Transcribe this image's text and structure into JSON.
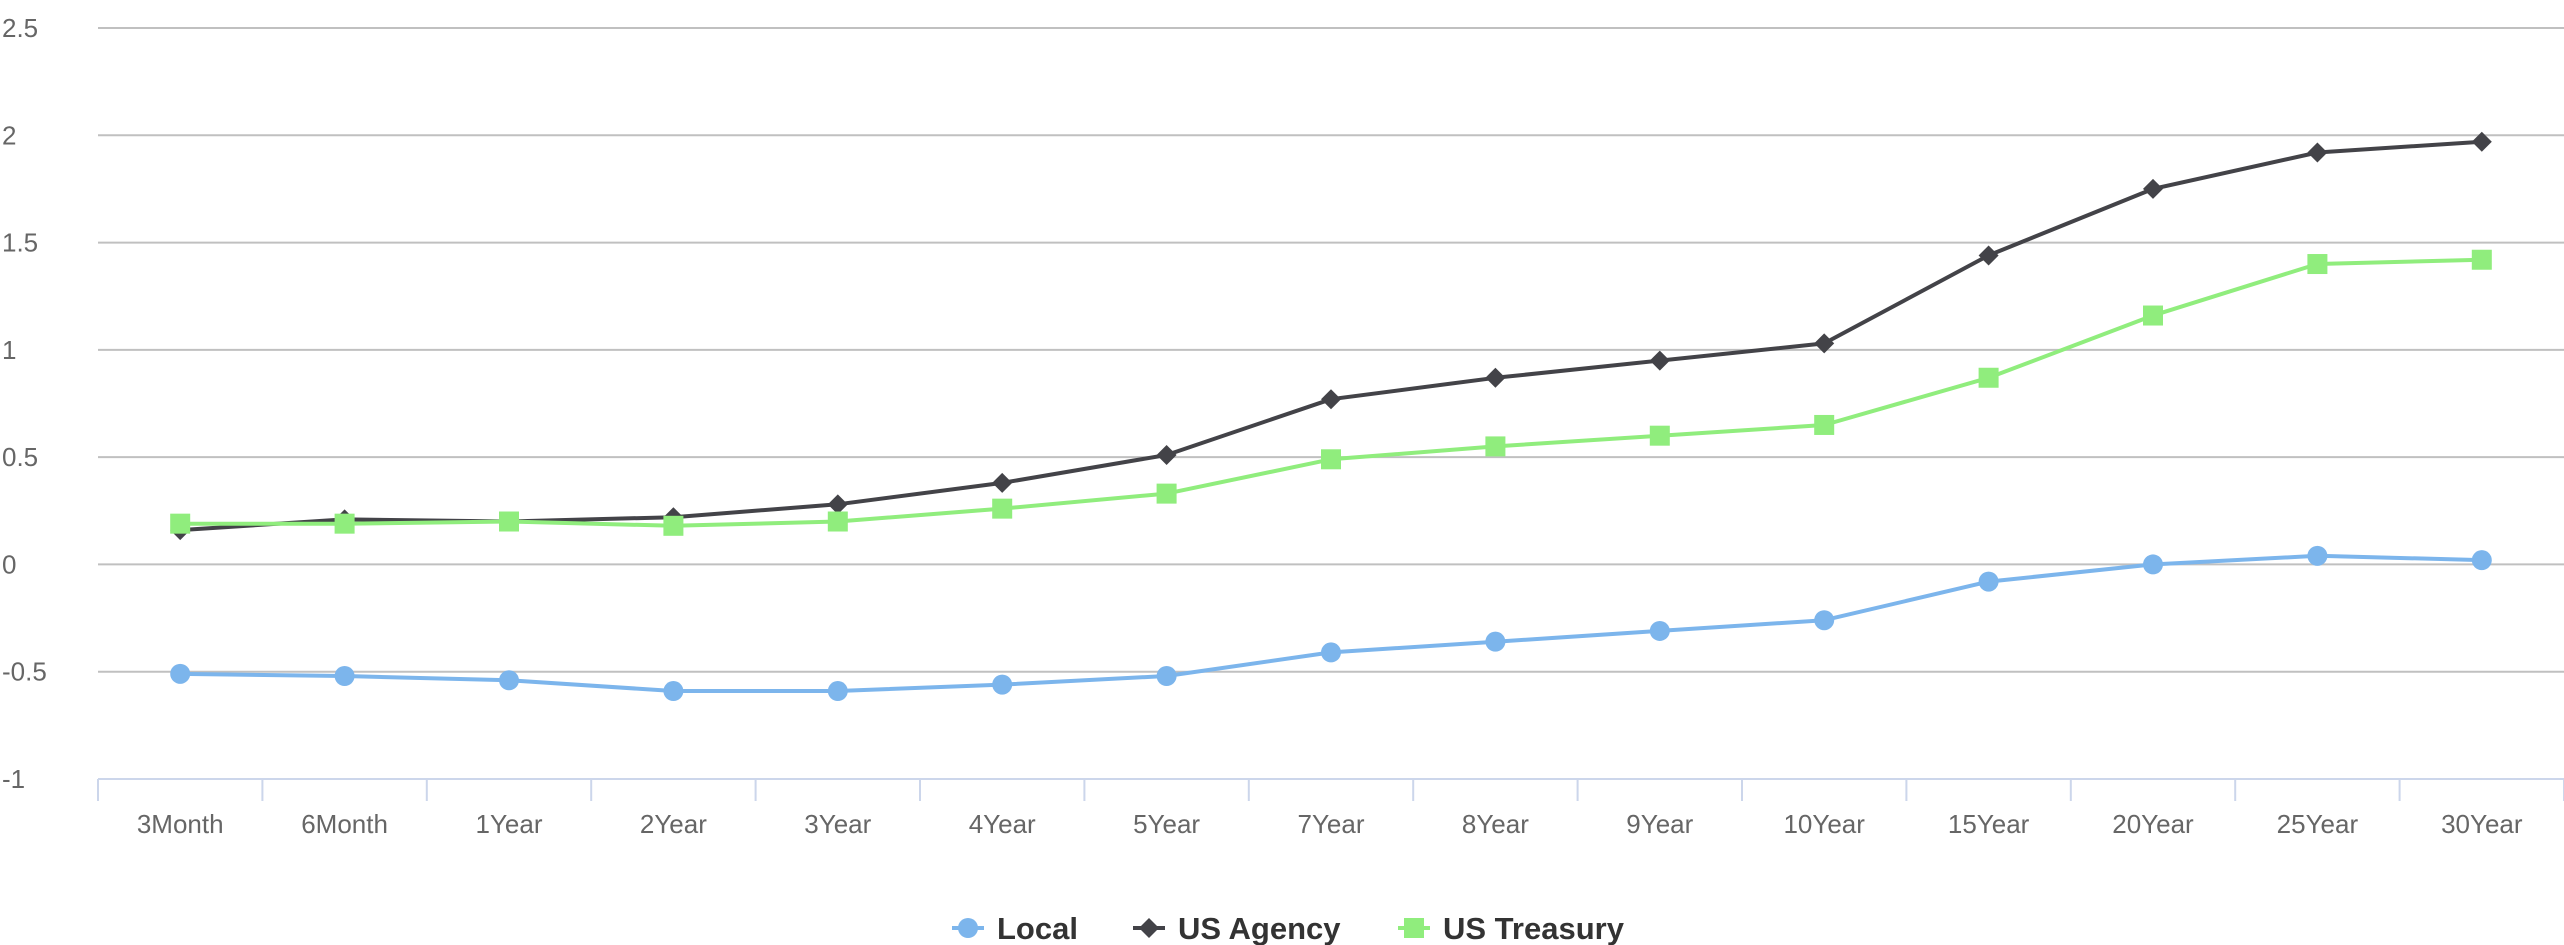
{
  "chart_data": {
    "type": "line",
    "title": "",
    "xlabel": "",
    "ylabel": "",
    "categories": [
      "3Month",
      "6Month",
      "1Year",
      "2Year",
      "3Year",
      "4Year",
      "5Year",
      "7Year",
      "8Year",
      "9Year",
      "10Year",
      "15Year",
      "20Year",
      "25Year",
      "30Year"
    ],
    "ylim": [
      -1,
      2.5
    ],
    "yticks": [
      "-1",
      "-0.5",
      "0",
      "0.5",
      "1",
      "1.5",
      "2",
      "2.5"
    ],
    "ytick_values": [
      -1,
      -0.5,
      0,
      0.5,
      1,
      1.5,
      2,
      2.5
    ],
    "grid": true,
    "legend_position": "bottom-center",
    "series": [
      {
        "name": "Local",
        "color": "#7cb5ec",
        "marker": "circle",
        "values": [
          -0.51,
          -0.52,
          -0.54,
          -0.59,
          -0.59,
          -0.56,
          -0.52,
          -0.41,
          -0.36,
          -0.31,
          -0.26,
          -0.08,
          0.0,
          0.04,
          0.02
        ]
      },
      {
        "name": "US Agency",
        "color": "#434348",
        "marker": "diamond",
        "values": [
          0.16,
          0.21,
          0.2,
          0.22,
          0.28,
          0.38,
          0.51,
          0.77,
          0.87,
          0.95,
          1.03,
          1.44,
          1.75,
          1.92,
          1.97
        ]
      },
      {
        "name": "US Treasury",
        "color": "#90ed7d",
        "marker": "square",
        "values": [
          0.19,
          0.19,
          0.2,
          0.18,
          0.2,
          0.26,
          0.33,
          0.49,
          0.55,
          0.6,
          0.65,
          0.87,
          1.16,
          1.4,
          1.42
        ]
      }
    ]
  },
  "colors": {
    "gridline": "#c0c0c0",
    "x_axis": "#ccd6eb",
    "tick_text": "#666666",
    "legend_text": "#333333"
  }
}
